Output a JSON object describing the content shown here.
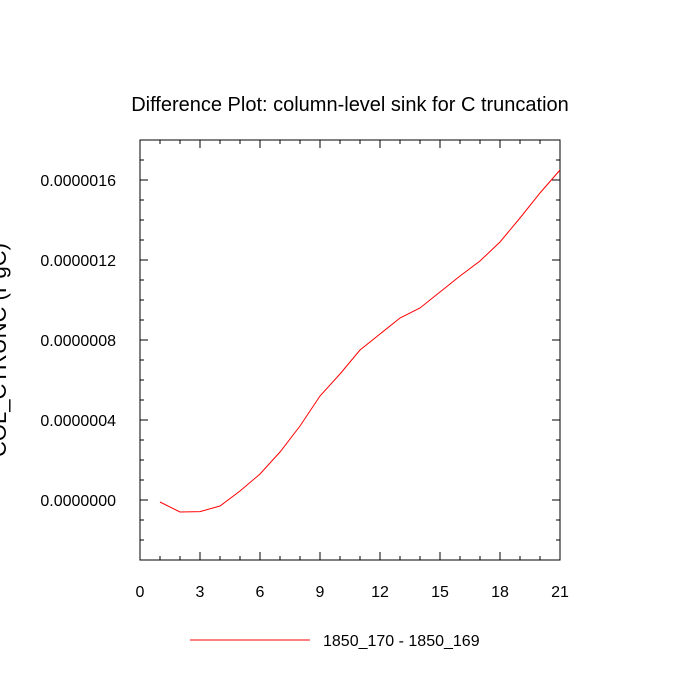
{
  "chart_data": {
    "type": "line",
    "title": "Difference Plot: column-level sink for C truncation",
    "ylabel": "COL_CTRUNC (PgC)",
    "xlabel": "",
    "xlim": [
      0,
      21
    ],
    "ylim": [
      -3e-07,
      1.8e-06
    ],
    "x_ticks": [
      0,
      3,
      6,
      9,
      12,
      15,
      18,
      21
    ],
    "x_tick_labels": [
      "0",
      "3",
      "6",
      "9",
      "12",
      "15",
      "18",
      "21"
    ],
    "y_ticks": [
      0,
      4e-07,
      8e-07,
      1.2e-06,
      1.6e-06
    ],
    "y_tick_labels": [
      "0.0000000",
      "0.0000004",
      "0.0000008",
      "0.0000012",
      "0.0000016"
    ],
    "grid": false,
    "legend_position": "bottom",
    "series": [
      {
        "name": "1850_170 - 1850_169",
        "color": "#ff0000",
        "x": [
          1,
          2,
          3,
          4,
          5,
          6,
          7,
          8,
          9,
          10,
          11,
          12,
          13,
          14,
          15,
          16,
          17,
          18,
          19,
          20,
          21
        ],
        "y": [
          -1e-08,
          -6e-08,
          -5.8e-08,
          -3e-08,
          4.5e-08,
          1.3e-07,
          2.4e-07,
          3.7e-07,
          5.2e-07,
          6.3e-07,
          7.5e-07,
          8.3e-07,
          9.1e-07,
          9.6e-07,
          1.04e-06,
          1.12e-06,
          1.195e-06,
          1.29e-06,
          1.41e-06,
          1.535e-06,
          1.65e-06
        ]
      }
    ]
  }
}
